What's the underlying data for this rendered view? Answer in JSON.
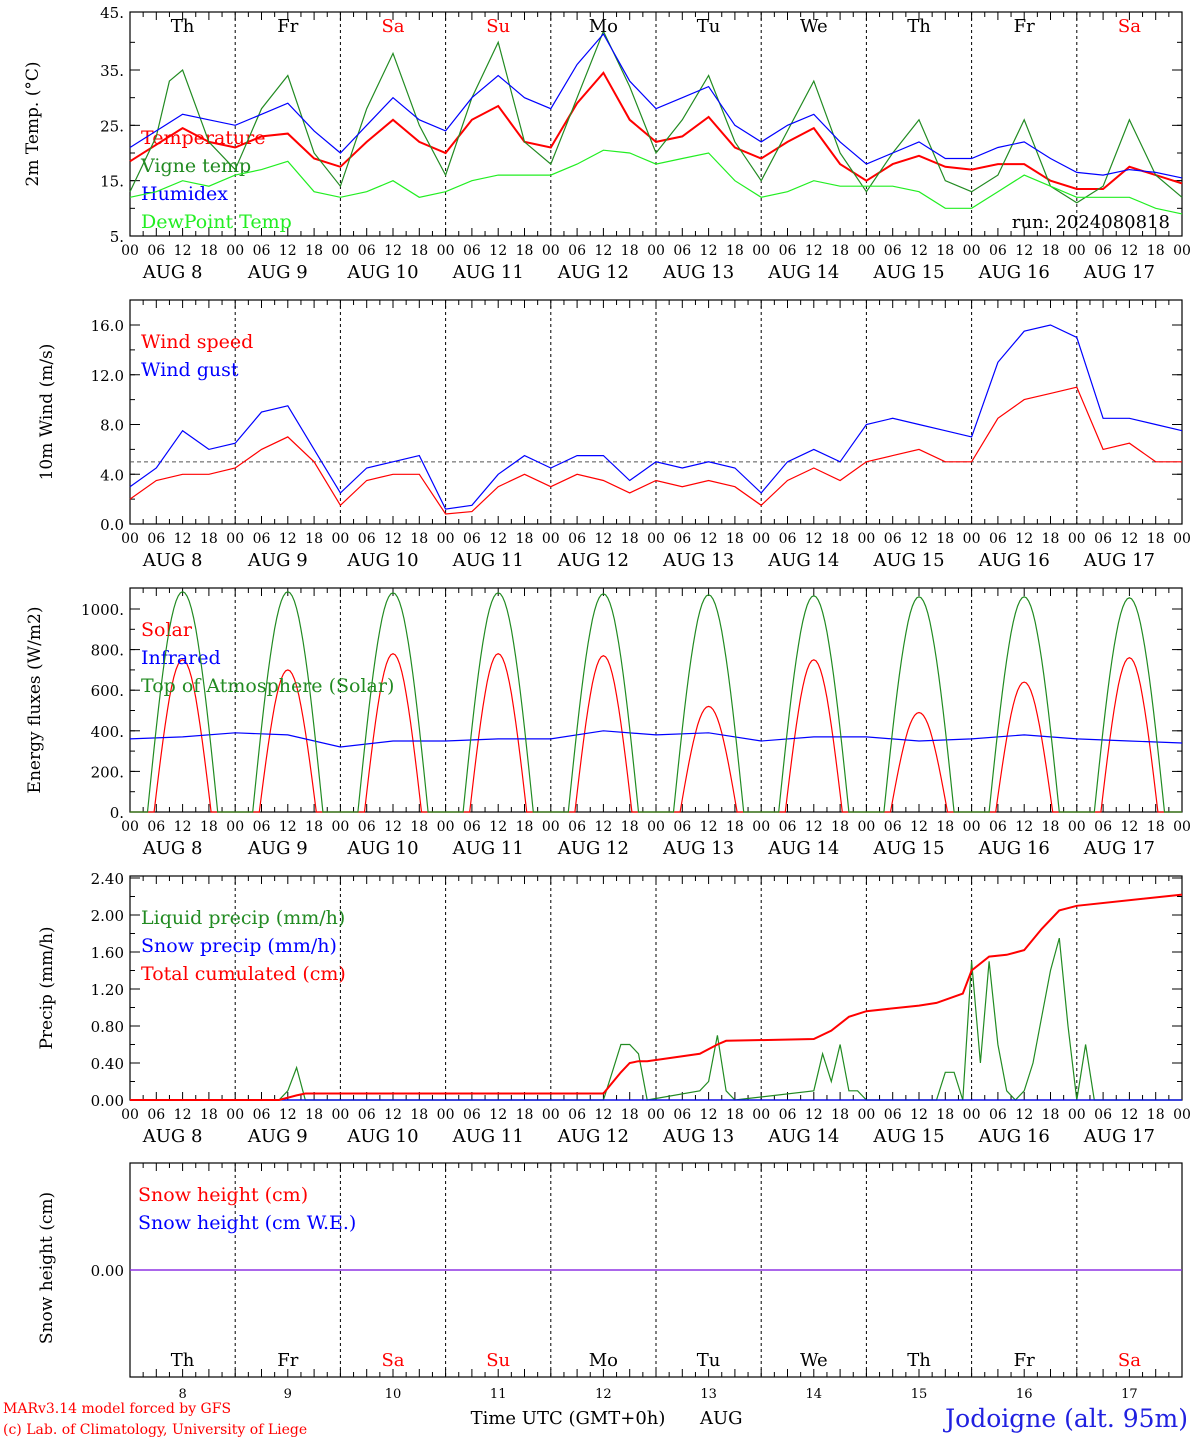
{
  "chart_data": [
    {
      "type": "line",
      "ylabel": "2m Temp. (°C)",
      "ylim": [
        5,
        45
      ],
      "yticks": [
        "5.",
        "15.",
        "25.",
        "35.",
        "45."
      ],
      "annotation": "run: 2024080818",
      "x_unit": "hours since AUG 8 00 UTC",
      "series": [
        {
          "name": "Temperature",
          "color": "#ff0000",
          "x": [
            0,
            6,
            12,
            18,
            24,
            30,
            36,
            42,
            48,
            54,
            60,
            66,
            72,
            78,
            84,
            90,
            96,
            102,
            108,
            114,
            120,
            126,
            132,
            138,
            144,
            150,
            156,
            162,
            168,
            174,
            180,
            186,
            192,
            198,
            204,
            210,
            216,
            222,
            228,
            234,
            240
          ],
          "y": [
            18.5,
            21.5,
            24.5,
            22,
            21,
            23,
            23.5,
            19,
            17.5,
            22,
            26,
            22,
            20,
            26,
            28.5,
            22,
            21,
            29,
            34.5,
            26,
            22,
            23,
            26.5,
            21,
            19,
            22,
            24.5,
            18,
            15,
            18,
            19.5,
            17.5,
            17,
            18,
            18,
            15,
            13.5,
            13.5,
            17.5,
            16,
            14.5
          ]
        },
        {
          "name": "Vigne temp",
          "color": "#228b22",
          "x": [
            0,
            6,
            9,
            12,
            18,
            24,
            30,
            36,
            42,
            48,
            54,
            60,
            66,
            72,
            78,
            84,
            90,
            96,
            102,
            108,
            114,
            120,
            126,
            132,
            138,
            144,
            150,
            156,
            162,
            168,
            174,
            180,
            186,
            192,
            198,
            204,
            210,
            216,
            222,
            228,
            234,
            240
          ],
          "y": [
            13,
            23,
            33,
            35,
            22,
            17,
            28,
            34,
            20,
            14,
            28,
            38,
            25,
            16,
            30,
            40,
            22,
            18,
            30,
            42,
            32,
            20,
            26,
            34,
            22,
            15,
            24,
            33,
            20,
            13,
            20,
            26,
            15,
            13,
            16,
            26,
            14,
            11,
            14,
            26,
            16,
            12
          ]
        },
        {
          "name": "Humidex",
          "color": "#0000ff",
          "x": [
            0,
            6,
            12,
            18,
            24,
            30,
            36,
            42,
            48,
            54,
            60,
            66,
            72,
            78,
            84,
            90,
            96,
            102,
            108,
            114,
            120,
            126,
            132,
            138,
            144,
            150,
            156,
            162,
            168,
            174,
            180,
            186,
            192,
            198,
            204,
            210,
            216,
            222,
            228,
            234,
            240
          ],
          "y": [
            21,
            24,
            27,
            26,
            25,
            27,
            29,
            24,
            20,
            25,
            30,
            26,
            24,
            30,
            34,
            30,
            28,
            36,
            41.5,
            33,
            28,
            30,
            32,
            25,
            22,
            25,
            27,
            22,
            18,
            20,
            22,
            19,
            19,
            21,
            22,
            19,
            16.5,
            16,
            17,
            16.5,
            15.5
          ]
        },
        {
          "name": "DewPoint Temp",
          "color": "#22ee22",
          "x": [
            0,
            6,
            12,
            18,
            24,
            30,
            36,
            42,
            48,
            54,
            60,
            66,
            72,
            78,
            84,
            90,
            96,
            102,
            108,
            114,
            120,
            126,
            132,
            138,
            144,
            150,
            156,
            162,
            168,
            174,
            180,
            186,
            192,
            198,
            204,
            210,
            216,
            222,
            228,
            234,
            240
          ],
          "y": [
            12,
            13,
            15,
            14,
            16,
            17,
            18.5,
            13,
            12,
            13,
            15,
            12,
            13,
            15,
            16,
            16,
            16,
            18,
            20.5,
            20,
            18,
            19,
            20,
            15,
            12,
            13,
            15,
            14,
            14,
            14,
            13,
            10,
            10,
            13,
            16,
            14,
            12,
            12,
            12,
            10,
            9
          ]
        }
      ]
    },
    {
      "type": "line",
      "ylabel": "10m Wind (m/s)",
      "ylim": [
        0,
        17.6
      ],
      "yticks": [
        "0.0",
        "4.0",
        "8.0",
        "12.0",
        "16.0"
      ],
      "reference_line": 5,
      "series": [
        {
          "name": "Wind speed",
          "color": "#ff0000",
          "x": [
            0,
            6,
            12,
            18,
            24,
            30,
            36,
            42,
            48,
            54,
            60,
            66,
            72,
            78,
            84,
            90,
            96,
            102,
            108,
            114,
            120,
            126,
            132,
            138,
            144,
            150,
            156,
            162,
            168,
            174,
            180,
            186,
            192,
            198,
            204,
            210,
            216,
            222,
            228,
            234,
            240
          ],
          "y": [
            2,
            3.5,
            4,
            4,
            4.5,
            6,
            7,
            5,
            1.5,
            3.5,
            4,
            4,
            0.8,
            1,
            3,
            4,
            3,
            4,
            3.5,
            2.5,
            3.5,
            3,
            3.5,
            3,
            1.5,
            3.5,
            4.5,
            3.5,
            5,
            5.5,
            6,
            5,
            5,
            8.5,
            10,
            10.5,
            11,
            6,
            6.5,
            5,
            5
          ]
        },
        {
          "name": "Wind gust",
          "color": "#0000ff",
          "x": [
            0,
            6,
            12,
            18,
            24,
            30,
            36,
            42,
            48,
            54,
            60,
            66,
            72,
            78,
            84,
            90,
            96,
            102,
            108,
            114,
            120,
            126,
            132,
            138,
            144,
            150,
            156,
            162,
            168,
            174,
            180,
            186,
            192,
            198,
            204,
            210,
            216,
            222,
            228,
            234,
            240
          ],
          "y": [
            3,
            4.5,
            7.5,
            6,
            6.5,
            9,
            9.5,
            6,
            2.5,
            4.5,
            5,
            5.5,
            1.2,
            1.5,
            4,
            5.5,
            4.5,
            5.5,
            5.5,
            3.5,
            5,
            4.5,
            5,
            4.5,
            2.5,
            5,
            6,
            5,
            8,
            8.5,
            8,
            7.5,
            7,
            13,
            15.5,
            16,
            15,
            8.5,
            8.5,
            8,
            7.5
          ]
        }
      ]
    },
    {
      "type": "line",
      "ylabel": "Energy fluxes (W/m2)",
      "ylim": [
        0,
        1100
      ],
      "yticks": [
        "0.",
        "200.",
        "400.",
        "600.",
        "800.",
        "1000."
      ],
      "series": [
        {
          "name": "Solar",
          "color": "#ff0000",
          "daily_peak": [
            750,
            700,
            780,
            780,
            770,
            520,
            750,
            490,
            640,
            760
          ]
        },
        {
          "name": "Infrared",
          "color": "#0000ff",
          "x": [
            0,
            12,
            24,
            36,
            48,
            60,
            72,
            84,
            96,
            108,
            120,
            132,
            144,
            156,
            168,
            180,
            192,
            204,
            216,
            228,
            240
          ],
          "y": [
            360,
            370,
            390,
            380,
            320,
            350,
            350,
            360,
            360,
            400,
            380,
            390,
            350,
            370,
            370,
            350,
            360,
            380,
            360,
            350,
            340
          ]
        },
        {
          "name": "Top of Atmosphere (Solar)",
          "color": "#228b22",
          "daily_peak": [
            1085,
            1085,
            1080,
            1080,
            1075,
            1070,
            1065,
            1060,
            1060,
            1055
          ]
        }
      ]
    },
    {
      "type": "line",
      "ylabel": "Precip (mm/h)",
      "ylim": [
        0,
        2.4
      ],
      "yticks": [
        "0.00",
        "0.40",
        "0.80",
        "1.20",
        "1.60",
        "2.00",
        "2.40"
      ],
      "series": [
        {
          "name": "Liquid precip (mm/h)",
          "color": "#228b22",
          "x": [
            0,
            34,
            36,
            38,
            40,
            108,
            110,
            112,
            114,
            116,
            118,
            130,
            132,
            134,
            136,
            138,
            156,
            158,
            160,
            162,
            164,
            166,
            168,
            184,
            186,
            188,
            190,
            192,
            194,
            196,
            198,
            200,
            202,
            204,
            206,
            208,
            210,
            212,
            214,
            216,
            218,
            220,
            240
          ],
          "y": [
            0,
            0,
            0.1,
            0.35,
            0,
            0,
            0.3,
            0.6,
            0.6,
            0.5,
            0,
            0.1,
            0.2,
            0.7,
            0.1,
            0,
            0.1,
            0.5,
            0.2,
            0.6,
            0.1,
            0.1,
            0,
            0,
            0.3,
            0.3,
            0,
            1.5,
            0.4,
            1.5,
            0.6,
            0.1,
            0,
            0.1,
            0.4,
            0.9,
            1.4,
            1.75,
            0.8,
            0,
            0.6,
            0,
            0
          ]
        },
        {
          "name": "Snow precip (mm/h)",
          "color": "#0000ff",
          "x": [
            0,
            240
          ],
          "y": [
            0,
            0
          ]
        },
        {
          "name": "Total cumulated (cm)",
          "color": "#ff0000",
          "x": [
            0,
            34,
            38,
            40,
            108,
            112,
            114,
            116,
            118,
            130,
            134,
            136,
            156,
            160,
            164,
            168,
            180,
            184,
            190,
            192,
            196,
            200,
            204,
            208,
            212,
            216,
            240
          ],
          "y": [
            0,
            0,
            0.05,
            0.07,
            0.07,
            0.3,
            0.4,
            0.42,
            0.42,
            0.5,
            0.6,
            0.64,
            0.66,
            0.75,
            0.9,
            0.96,
            1.02,
            1.05,
            1.15,
            1.4,
            1.55,
            1.57,
            1.62,
            1.85,
            2.05,
            2.1,
            2.22
          ]
        }
      ]
    },
    {
      "type": "line",
      "ylabel": "Snow height (cm)",
      "ytick": "0.00",
      "series": [
        {
          "name": "Snow height (cm)",
          "color": "#ff0000",
          "x": [
            0,
            240
          ],
          "y": [
            0,
            0
          ]
        },
        {
          "name": "Snow height (cm W.E.)",
          "color": "#0000ff",
          "x": [
            0,
            240
          ],
          "y": [
            0,
            0
          ]
        }
      ]
    }
  ],
  "x_axis": {
    "hour_labels": [
      "00",
      "06",
      "12",
      "18"
    ],
    "final_hour_label": "00",
    "dates": [
      "AUG  8",
      "AUG  9",
      "AUG 10",
      "AUG 11",
      "AUG 12",
      "AUG 13",
      "AUG 14",
      "AUG 15",
      "AUG 16",
      "AUG 17"
    ],
    "date_numbers": [
      "8",
      "9",
      "10",
      "11",
      "12",
      "13",
      "14",
      "15",
      "16",
      "17"
    ],
    "title": "Time UTC (GMT+0h)",
    "month": "AUG"
  },
  "days": [
    {
      "label": "Th",
      "color": "#000000"
    },
    {
      "label": "Fr",
      "color": "#000000"
    },
    {
      "label": "Sa",
      "color": "#ff0000"
    },
    {
      "label": "Su",
      "color": "#ff0000"
    },
    {
      "label": "Mo",
      "color": "#000000"
    },
    {
      "label": "Tu",
      "color": "#000000"
    },
    {
      "label": "We",
      "color": "#000000"
    },
    {
      "label": "Th",
      "color": "#000000"
    },
    {
      "label": "Fr",
      "color": "#000000"
    },
    {
      "label": "Sa",
      "color": "#ff0000"
    }
  ],
  "footer": {
    "model": "MARv3.14 model forced by GFS",
    "credit": "(c) Lab. of Climatology, University of Liege",
    "station": "Jodoigne (alt. 95m)"
  }
}
